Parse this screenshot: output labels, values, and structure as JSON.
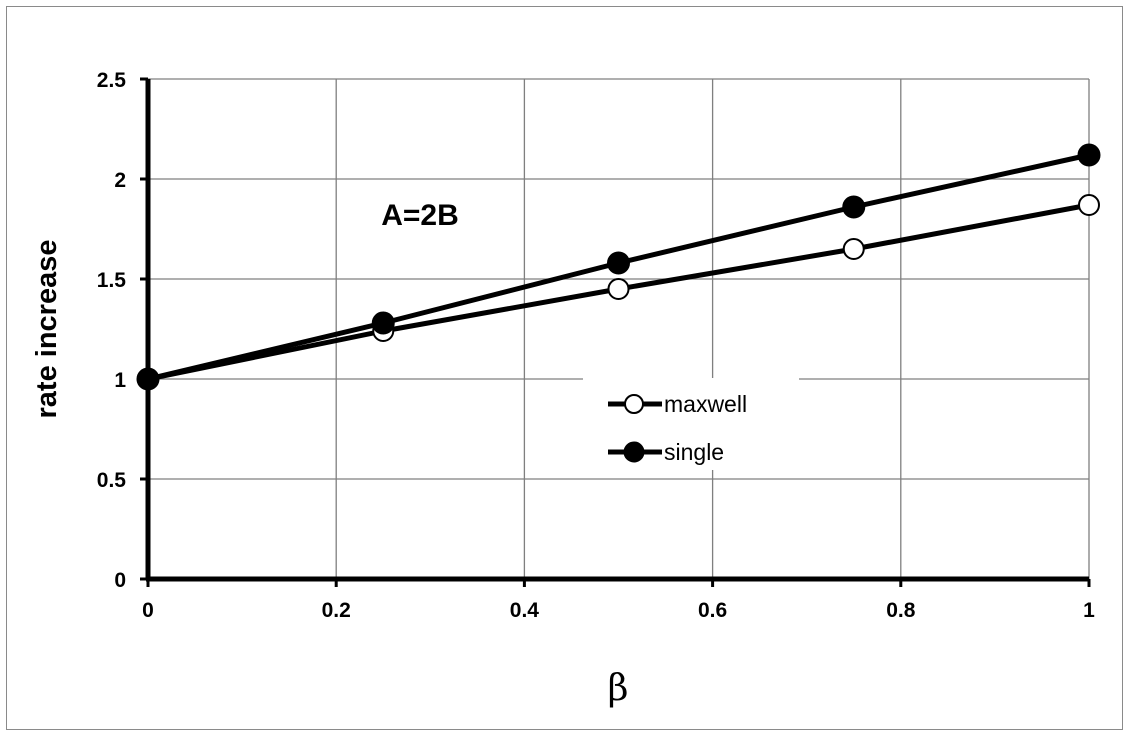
{
  "chart_data": {
    "type": "line",
    "ylabel": "rate increase",
    "xlabel": "β",
    "annotation": "A=2B",
    "xlim": [
      0,
      1
    ],
    "ylim": [
      0,
      2.5
    ],
    "x_ticks": [
      "0",
      "0.2",
      "0.4",
      "0.6",
      "0.8",
      "1"
    ],
    "y_ticks": [
      "0",
      "0.5",
      "1",
      "1.5",
      "2",
      "2.5"
    ],
    "grid": true,
    "legend_position": "center-right",
    "x": [
      0,
      0.25,
      0.5,
      0.75,
      1
    ],
    "series": [
      {
        "name": "maxwell",
        "marker": "open-circle",
        "values": [
          1.0,
          1.24,
          1.45,
          1.65,
          1.87
        ]
      },
      {
        "name": "single",
        "marker": "filled-circle",
        "values": [
          1.0,
          1.28,
          1.58,
          1.86,
          2.12
        ]
      }
    ],
    "colors": {
      "line": "#000000",
      "grid": "#7f7f7f",
      "open_marker_fill": "#ffffff",
      "filled_marker_fill": "#000000"
    }
  }
}
